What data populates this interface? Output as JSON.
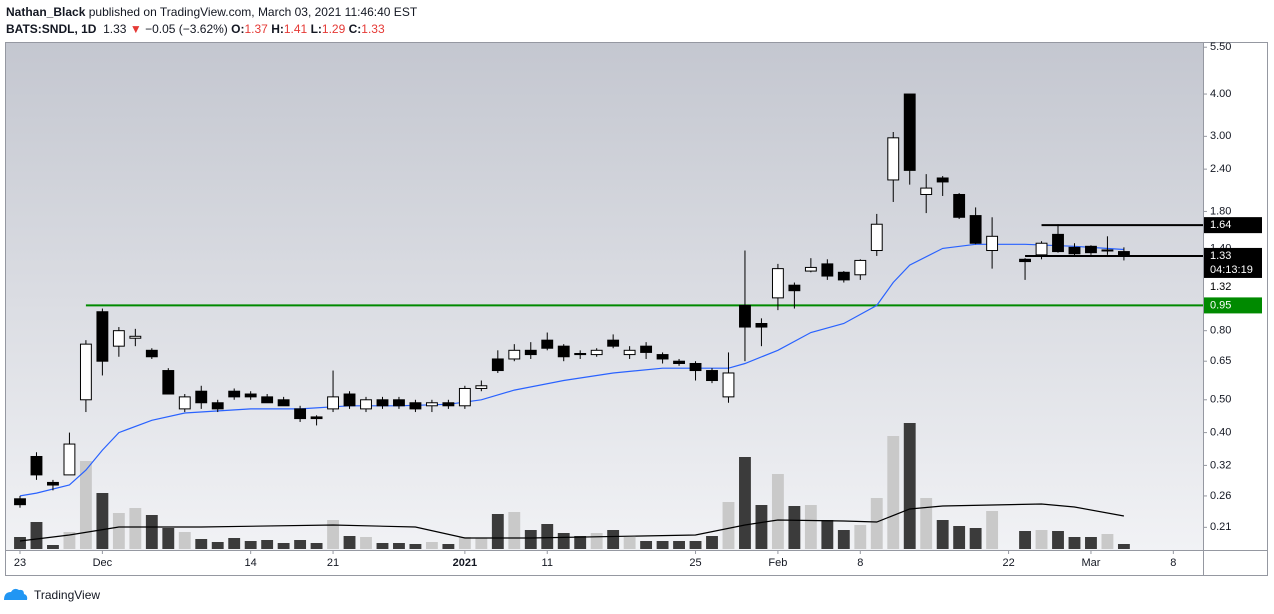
{
  "header": {
    "author": "Nathan_Black",
    "published": "published on TradingView.com, March 03, 2021 11:46:40 EST",
    "symbol": "BATS:SNDL, 1D",
    "last": "1.33",
    "arrow": "▼",
    "change": "−0.05 (−3.62%)",
    "o_label": "O:",
    "o": "1.37",
    "h_label": "H:",
    "h": "1.41",
    "l_label": "L:",
    "l": "1.29",
    "c_label": "C:",
    "c": "1.33"
  },
  "chart_data": {
    "type": "candlestick",
    "log_scale": true,
    "up_color": "#ffffff",
    "down_color": "#000000",
    "edge_color": "#000000",
    "x": [
      0,
      1,
      2,
      3,
      4,
      5,
      6,
      7,
      8,
      9,
      10,
      11,
      12,
      13,
      14,
      15,
      16,
      17,
      18,
      19,
      20,
      21,
      22,
      23,
      24,
      25,
      26,
      27,
      28,
      29,
      30,
      31,
      32,
      33,
      34,
      35,
      36,
      37,
      38,
      39,
      40,
      41,
      42,
      43,
      44,
      45,
      46,
      47,
      48,
      49,
      50,
      51,
      52,
      53,
      54,
      55,
      56,
      57,
      58,
      59,
      61,
      62,
      63,
      64,
      65,
      66,
      67
    ],
    "open": [
      0.255,
      0.34,
      0.285,
      0.3,
      0.5,
      0.91,
      0.72,
      0.76,
      0.7,
      0.61,
      0.47,
      0.53,
      0.49,
      0.53,
      0.52,
      0.51,
      0.5,
      0.47,
      0.445,
      0.47,
      0.52,
      0.47,
      0.5,
      0.5,
      0.49,
      0.48,
      0.49,
      0.48,
      0.54,
      0.66,
      0.66,
      0.7,
      0.75,
      0.72,
      0.685,
      0.68,
      0.75,
      0.68,
      0.72,
      0.68,
      0.65,
      0.64,
      0.61,
      0.51,
      0.95,
      0.84,
      1.0,
      1.09,
      1.2,
      1.26,
      1.19,
      1.17,
      1.38,
      2.23,
      4.0,
      2.02,
      2.26,
      2.02,
      1.75,
      1.38,
      1.3,
      1.34,
      1.54,
      1.41,
      1.42,
      1.38,
      1.37
    ],
    "high": [
      0.26,
      0.35,
      0.29,
      0.4,
      0.75,
      0.93,
      0.82,
      0.81,
      0.71,
      0.62,
      0.52,
      0.55,
      0.5,
      0.54,
      0.53,
      0.52,
      0.51,
      0.48,
      0.45,
      0.61,
      0.53,
      0.51,
      0.51,
      0.51,
      0.5,
      0.5,
      0.5,
      0.55,
      0.57,
      0.7,
      0.73,
      0.74,
      0.79,
      0.73,
      0.7,
      0.71,
      0.78,
      0.72,
      0.74,
      0.69,
      0.66,
      0.65,
      0.62,
      0.69,
      1.38,
      0.87,
      1.26,
      1.11,
      1.31,
      1.3,
      1.2,
      1.3,
      1.77,
      3.09,
      4.0,
      2.32,
      2.29,
      2.04,
      1.85,
      1.73,
      1.31,
      1.47,
      1.65,
      1.45,
      1.43,
      1.52,
      1.41
    ],
    "low": [
      0.24,
      0.29,
      0.27,
      0.3,
      0.46,
      0.59,
      0.67,
      0.72,
      0.66,
      0.52,
      0.46,
      0.47,
      0.46,
      0.5,
      0.5,
      0.49,
      0.48,
      0.43,
      0.42,
      0.46,
      0.47,
      0.46,
      0.47,
      0.47,
      0.46,
      0.46,
      0.47,
      0.47,
      0.53,
      0.6,
      0.65,
      0.66,
      0.7,
      0.65,
      0.66,
      0.67,
      0.71,
      0.66,
      0.66,
      0.64,
      0.63,
      0.57,
      0.56,
      0.49,
      0.65,
      0.72,
      0.92,
      0.93,
      1.19,
      1.13,
      1.11,
      1.13,
      1.33,
      1.92,
      2.16,
      1.78,
      2.0,
      1.71,
      1.44,
      1.22,
      1.13,
      1.3,
      1.36,
      1.33,
      1.34,
      1.34,
      1.29
    ],
    "close": [
      0.245,
      0.3,
      0.28,
      0.37,
      0.73,
      0.65,
      0.8,
      0.77,
      0.67,
      0.52,
      0.51,
      0.49,
      0.47,
      0.51,
      0.51,
      0.49,
      0.48,
      0.44,
      0.44,
      0.51,
      0.48,
      0.5,
      0.48,
      0.48,
      0.47,
      0.49,
      0.48,
      0.54,
      0.55,
      0.61,
      0.7,
      0.68,
      0.71,
      0.67,
      0.68,
      0.7,
      0.72,
      0.7,
      0.69,
      0.66,
      0.64,
      0.61,
      0.57,
      0.6,
      0.82,
      0.82,
      1.22,
      1.05,
      1.23,
      1.16,
      1.13,
      1.29,
      1.65,
      2.97,
      2.38,
      2.11,
      2.2,
      1.73,
      1.45,
      1.52,
      1.28,
      1.45,
      1.37,
      1.35,
      1.36,
      1.385,
      1.33
    ],
    "xlim": [
      -0.85,
      71.8
    ],
    "ylim": [
      0.18,
      5.66
    ],
    "xticks": [
      {
        "value": 0,
        "label": "23"
      },
      {
        "value": 5,
        "label": "Dec"
      },
      {
        "value": 14,
        "label": "14"
      },
      {
        "value": 19,
        "label": "21"
      },
      {
        "value": 27,
        "label": "2021"
      },
      {
        "value": 32,
        "label": "11"
      },
      {
        "value": 41,
        "label": "25"
      },
      {
        "value": 46,
        "label": "Feb"
      },
      {
        "value": 51,
        "label": "8"
      },
      {
        "value": 60,
        "label": "22"
      },
      {
        "value": 65,
        "label": "Mar"
      },
      {
        "value": 70,
        "label": "8"
      }
    ],
    "yticks": [
      0.21,
      0.26,
      0.32,
      {
        "value": 0.4,
        "label": "0.40"
      },
      {
        "value": 0.5,
        "label": "0.50"
      },
      0.65,
      {
        "value": 0.8,
        "label": "0.80"
      },
      {
        "value": 1.4,
        "label": "1.40"
      },
      {
        "value": 1.8,
        "label": "1.80"
      },
      {
        "value": 2.4,
        "label": "2.40"
      },
      {
        "value": 3,
        "label": "3.00"
      },
      {
        "value": 4,
        "label": "4.00"
      },
      {
        "value": 5.5,
        "label": "5.50"
      }
    ],
    "ma": {
      "color": "#2962ff",
      "x": [
        0,
        1,
        3,
        4,
        5,
        6,
        8,
        10,
        14,
        17,
        20,
        23,
        26,
        28,
        30,
        33,
        36,
        39,
        41,
        43,
        44,
        46,
        48,
        50,
        52,
        53,
        54,
        56,
        58,
        61,
        64,
        67
      ],
      "values": [
        0.26,
        0.265,
        0.28,
        0.31,
        0.355,
        0.4,
        0.435,
        0.457,
        0.47,
        0.47,
        0.48,
        0.48,
        0.485,
        0.5,
        0.534,
        0.57,
        0.6,
        0.62,
        0.62,
        0.62,
        0.64,
        0.7,
        0.79,
        0.84,
        0.95,
        1.11,
        1.25,
        1.4,
        1.44,
        1.44,
        1.42,
        1.39
      ]
    },
    "volume": {
      "ylim": [
        0,
        130
      ],
      "up_color": "#c9c9c9",
      "down_color": "#3b3b3b",
      "values": [
        12,
        27,
        4,
        17,
        88,
        56,
        36,
        41,
        34,
        21,
        17,
        10,
        7,
        11,
        8,
        9,
        6,
        9,
        6,
        29,
        13,
        12,
        6,
        6,
        5,
        7,
        5,
        12,
        11,
        35,
        37,
        19,
        25,
        16,
        13,
        16,
        19,
        12,
        8,
        8,
        8,
        8,
        13,
        47,
        92,
        44,
        75,
        43,
        44,
        29,
        19,
        24,
        51,
        113,
        126,
        51,
        29,
        23,
        21,
        38,
        18,
        19,
        18,
        12,
        12,
        15,
        5
      ],
      "ma": {
        "color": "#000000",
        "x": [
          0,
          3,
          6,
          11,
          19,
          24,
          27,
          31,
          41,
          44,
          46,
          50,
          52,
          54,
          56,
          59,
          62,
          64,
          67
        ],
        "values": [
          8,
          14,
          22,
          22,
          24,
          22,
          11,
          11,
          14,
          24,
          29,
          28,
          27,
          40,
          43,
          44,
          45,
          42,
          33
        ]
      }
    },
    "levels": [
      {
        "value": 0.95,
        "label": "0.95",
        "color": "#008a00",
        "from_x": 4
      },
      {
        "value": 1.64,
        "label": "1.64",
        "color": "#000000",
        "from_x": 62
      },
      {
        "value": 1.33,
        "label": "1.33",
        "color": "#000000",
        "from_x": 61,
        "countdown": "04:13:19"
      }
    ],
    "price_labels": [
      {
        "value": 1.32,
        "label": "1.32"
      }
    ]
  },
  "footer": {
    "brand": "TradingView"
  }
}
